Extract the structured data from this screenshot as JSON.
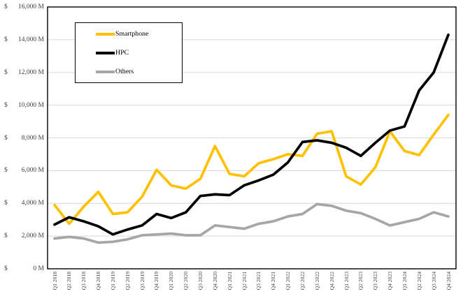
{
  "chart_data": {
    "type": "line",
    "title": "",
    "categories": [
      "Q1 2018",
      "Q2 2018",
      "Q3 2018",
      "Q4 2018",
      "Q1 2019",
      "Q2 2019",
      "Q3 2019",
      "Q4 2019",
      "Q1 2020",
      "Q2 2020",
      "Q3 2020",
      "Q4 2020",
      "Q1 2021",
      "Q2 2021",
      "Q3 2021",
      "Q4 2021",
      "Q1 2022",
      "Q2 2022",
      "Q3 2022",
      "Q4 2022",
      "Q1 2023",
      "Q2 2023",
      "Q3 2023",
      "Q4 2023",
      "Q1 2024",
      "Q2 2024",
      "Q3 2024",
      "Q4 2024"
    ],
    "series": [
      {
        "name": "Smartphone",
        "color": "#FFC000",
        "values": [
          3900,
          2750,
          3800,
          4700,
          3350,
          3450,
          4400,
          6050,
          5100,
          4900,
          5500,
          7500,
          5800,
          5650,
          6450,
          6700,
          7000,
          6900,
          8250,
          8400,
          5650,
          5150,
          6200,
          8400,
          7200,
          6950,
          8200,
          9400
        ]
      },
      {
        "name": "HPC",
        "color": "#000000",
        "values": [
          2700,
          3150,
          2900,
          2600,
          2100,
          2400,
          2650,
          3350,
          3100,
          3450,
          4450,
          4550,
          4500,
          5100,
          5400,
          5750,
          6500,
          7750,
          7850,
          7700,
          7400,
          6900,
          7700,
          8450,
          8700,
          10900,
          12000,
          14300
        ]
      },
      {
        "name": "Others",
        "color": "#A6A6A6",
        "values": [
          1850,
          1950,
          1850,
          1600,
          1650,
          1800,
          2050,
          2100,
          2150,
          2050,
          2050,
          2650,
          2550,
          2450,
          2750,
          2900,
          3200,
          3350,
          3950,
          3850,
          3550,
          3400,
          3050,
          2650,
          2850,
          3050,
          3450,
          3200
        ]
      }
    ],
    "y_axis": {
      "min": 0,
      "max": 16000,
      "step": 2000,
      "tick_labels": [
        "$ 0 M",
        "$ 2,000 M",
        "$ 4,000 M",
        "$ 6,000 M",
        "$ 8,000 M",
        "$ 10,000 M",
        "$ 12,000 M",
        "$ 14,000 M",
        "$ 16,000 M"
      ],
      "grid_color": "#D9D9D9",
      "axis_color": "#000000",
      "label_color": "#404040"
    },
    "legend": {
      "position": "top-left-inside",
      "border_color": "#000000"
    },
    "grid": true
  }
}
